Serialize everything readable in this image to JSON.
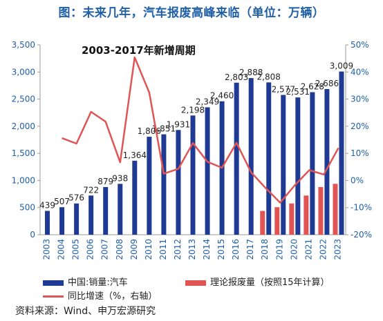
{
  "title": "图：未来几年，汽车报废高峰来临（单位：万辆）",
  "annotation": "2003-2017年新增周期",
  "source": "资料来源：Wind、申万宏源研究",
  "colors": {
    "sales": "#1f3a93",
    "scrap": "#e05454",
    "growth": "#e05454",
    "axis_text": "#1f5fa8"
  },
  "chart_data": {
    "type": "bar",
    "categories": [
      "2003",
      "2004",
      "2005",
      "2006",
      "2007",
      "2008",
      "2009",
      "2010",
      "2011",
      "2012",
      "2013",
      "2014",
      "2015",
      "2016",
      "2017",
      "2018",
      "2019",
      "2020",
      "2021",
      "2022",
      "2023"
    ],
    "series": [
      {
        "name": "中国:销量:汽车",
        "type": "bar",
        "axis": "left",
        "values": [
          439,
          507,
          576,
          722,
          879,
          938,
          1364,
          1806,
          1851,
          1931,
          2198,
          2349,
          2460,
          2803,
          2888,
          2808,
          2577,
          2531,
          2628,
          2686,
          3009
        ]
      },
      {
        "name": "理论报废量（按照15年计算）",
        "type": "bar",
        "axis": "left",
        "values": [
          null,
          null,
          null,
          null,
          null,
          null,
          null,
          null,
          null,
          null,
          null,
          null,
          null,
          null,
          null,
          439,
          507,
          576,
          722,
          879,
          938
        ]
      },
      {
        "name": "同比增速（%，右轴）",
        "type": "line",
        "axis": "right",
        "values": [
          null,
          15.6,
          13.6,
          25.3,
          21.7,
          6.7,
          45.4,
          32.4,
          2.5,
          4.3,
          13.8,
          6.9,
          4.7,
          13.9,
          3.0,
          -2.8,
          -8.2,
          -1.8,
          3.8,
          2.2,
          12.0
        ]
      }
    ],
    "ylim_left": [
      0,
      3500
    ],
    "yticks_left": [
      "0",
      "500",
      "1,000",
      "1,500",
      "2,000",
      "2,500",
      "3,000",
      "3,500"
    ],
    "ylim_right": [
      -20,
      50
    ],
    "yticks_right": [
      "-20%",
      "-10%",
      "0%",
      "10%",
      "20%",
      "30%",
      "40%",
      "50%"
    ],
    "legend": "bottom"
  }
}
